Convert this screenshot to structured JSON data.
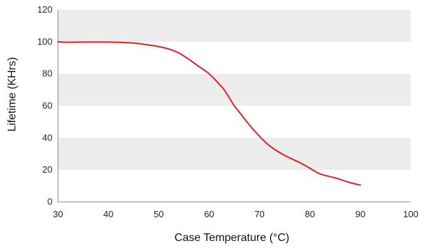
{
  "chart_data": {
    "type": "line",
    "title": "",
    "xlabel": "Case Temperature (°C)",
    "ylabel": "Lifetime (KHrs)",
    "xlim": [
      30,
      100
    ],
    "ylim": [
      0,
      120
    ],
    "x_ticks": [
      "30",
      "40",
      "50",
      "60",
      "70",
      "80",
      "90",
      "100"
    ],
    "y_ticks": [
      "0",
      "20",
      "40",
      "60",
      "80",
      "100",
      "120"
    ],
    "grid": "alternating horizontal bands",
    "legend": "none",
    "series": [
      {
        "color": "#e31e24",
        "x": [
          30,
          32,
          35,
          40,
          45,
          48,
          50,
          52,
          54,
          56,
          58,
          60,
          62,
          63,
          64,
          65,
          66,
          68,
          70,
          72,
          75,
          78,
          80,
          82,
          85,
          88,
          90
        ],
        "y": [
          100,
          99.7,
          99.8,
          99.8,
          99.2,
          98,
          97,
          95.5,
          93,
          89,
          84.5,
          80,
          73.5,
          70,
          65,
          60,
          56,
          48,
          41,
          35,
          29,
          24.5,
          21,
          17.5,
          15,
          12,
          10.5
        ]
      }
    ]
  },
  "colors": {
    "band": "#ececec",
    "axis": "#888888",
    "line": "#e31e24"
  }
}
